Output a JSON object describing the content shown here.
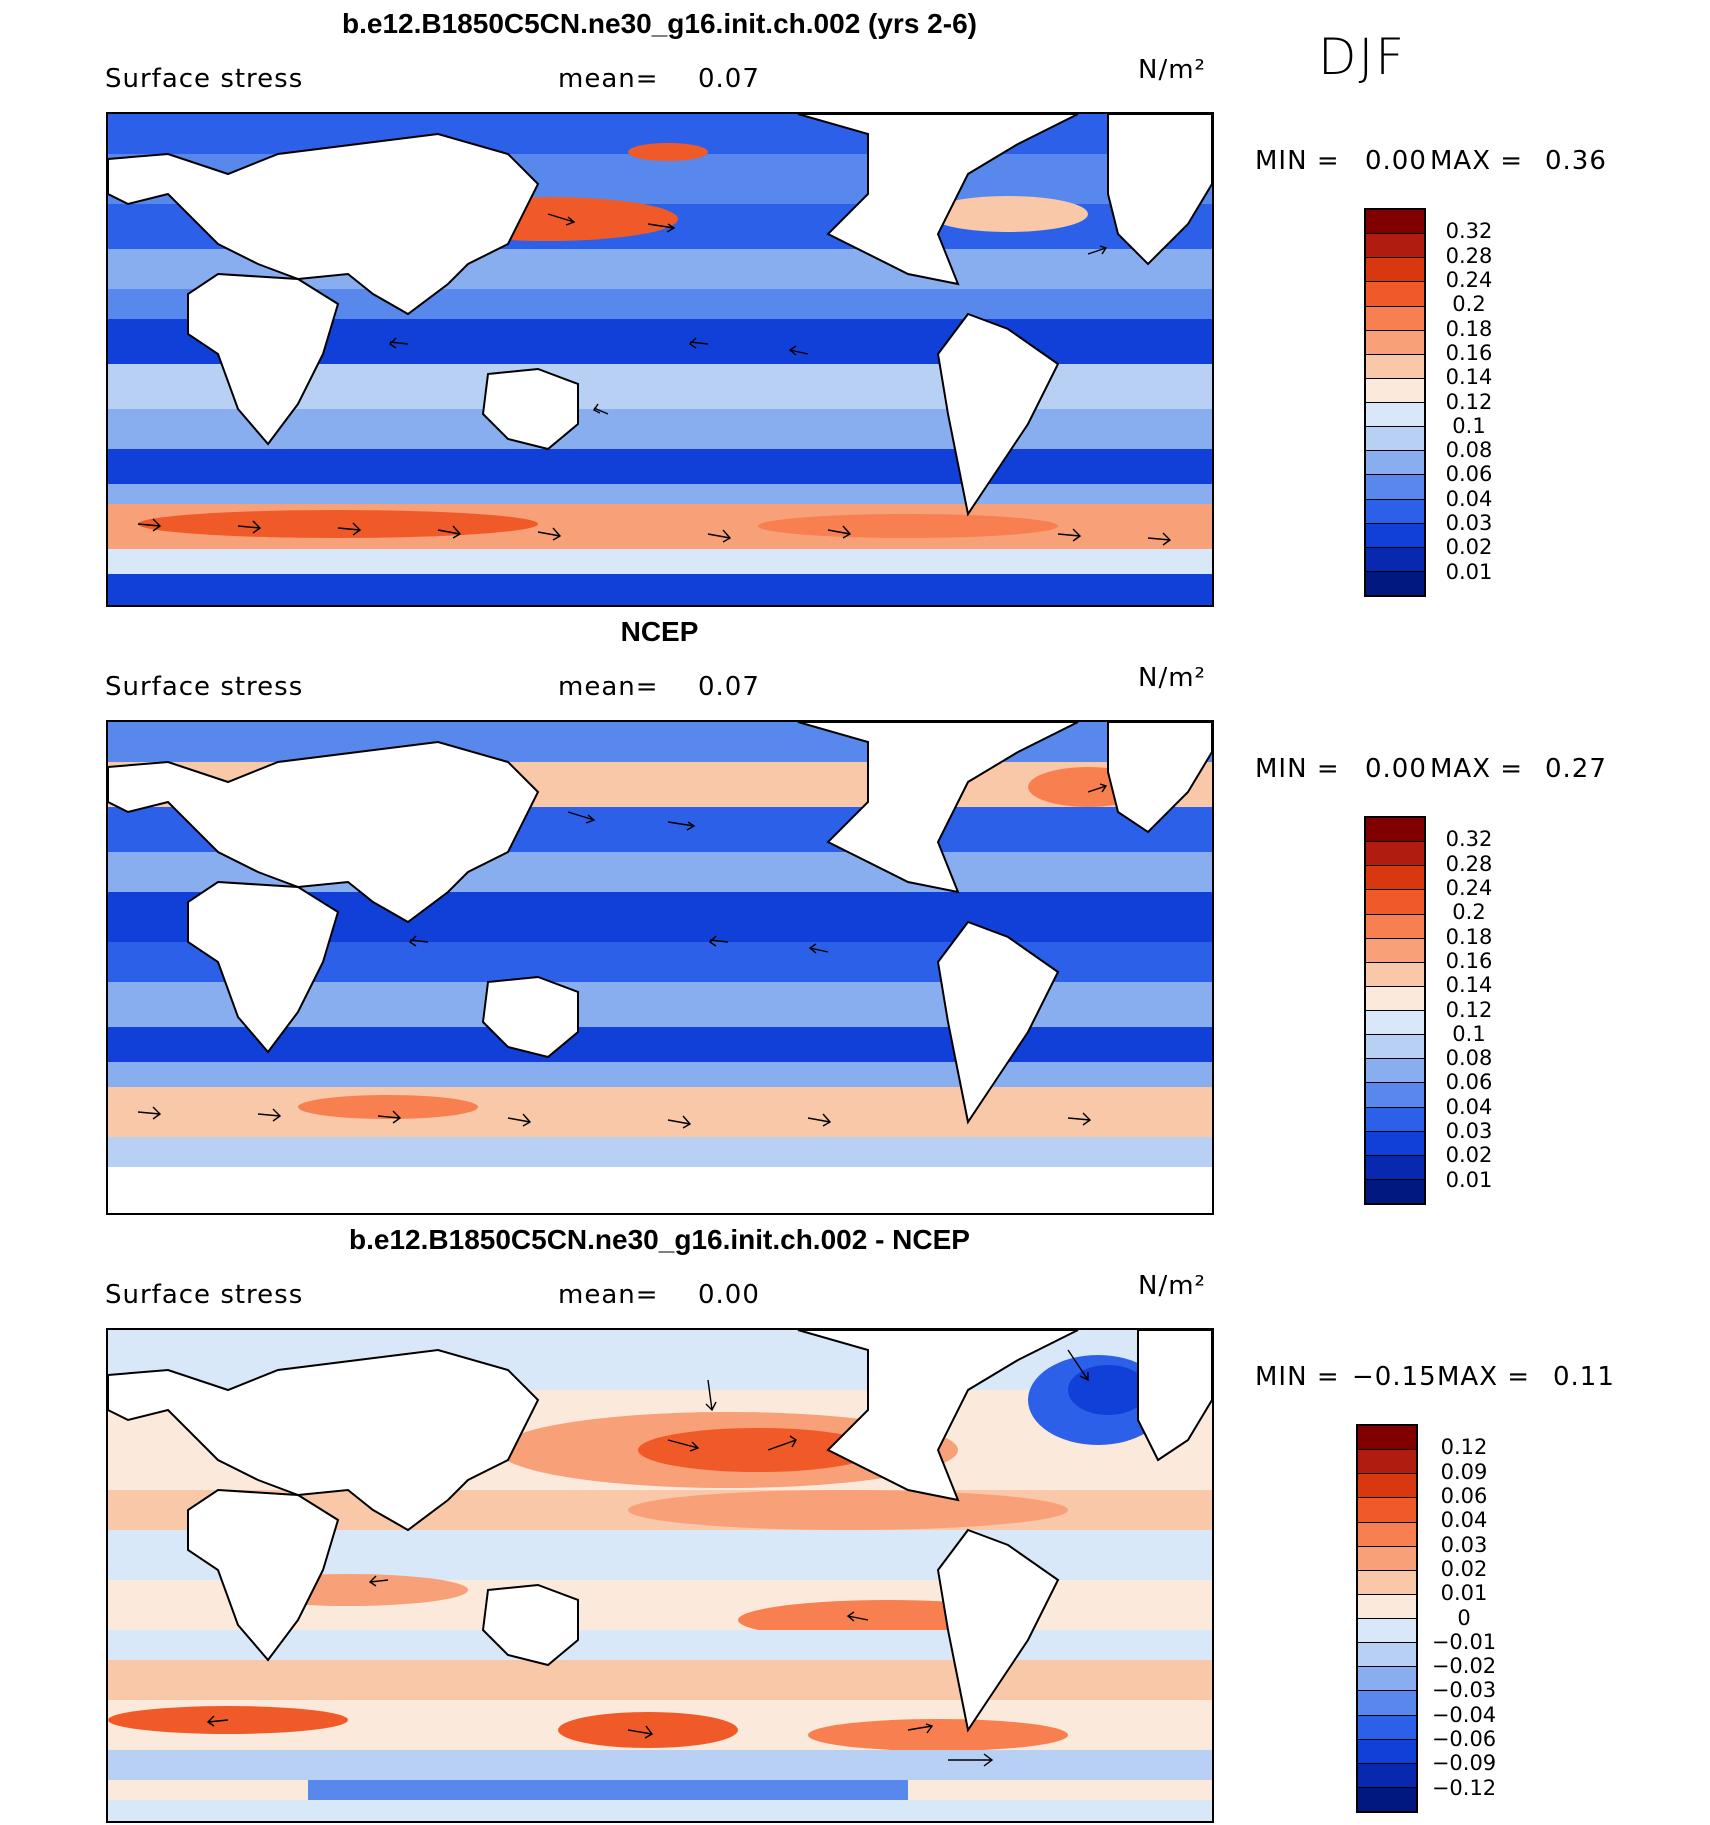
{
  "season": "DJF",
  "panels": [
    {
      "title": "b.e12.B1850C5CN.ne30_g16.init.ch.002 (yrs 2-6)",
      "variable": "Surface stress",
      "mean_label": "mean=",
      "mean_value": "0.07",
      "units": "N/m²",
      "min_label": "MIN =",
      "min_value": "0.00",
      "max_label": "MAX =",
      "max_value": "0.36",
      "colorbar_labels": [
        "0.32",
        "0.28",
        "0.24",
        "0.2",
        "0.18",
        "0.16",
        "0.14",
        "0.12",
        "0.1",
        "0.08",
        "0.06",
        "0.04",
        "0.03",
        "0.02",
        "0.01"
      ],
      "colorbar_colors": [
        "#800000",
        "#b01c10",
        "#d83810",
        "#f05a28",
        "#f88050",
        "#f8a078",
        "#f8c8a8",
        "#fbeadb",
        "#d8e8f8",
        "#b8d0f4",
        "#88aef0",
        "#5888ec",
        "#2c60e8",
        "#1040d8",
        "#0828b0",
        "#001880"
      ]
    },
    {
      "title": "NCEP",
      "variable": "Surface stress",
      "mean_label": "mean=",
      "mean_value": "0.07",
      "units": "N/m²",
      "min_label": "MIN =",
      "min_value": "0.00",
      "max_label": "MAX =",
      "max_value": "0.27",
      "colorbar_labels": [
        "0.32",
        "0.28",
        "0.24",
        "0.2",
        "0.18",
        "0.16",
        "0.14",
        "0.12",
        "0.1",
        "0.08",
        "0.06",
        "0.04",
        "0.03",
        "0.02",
        "0.01"
      ],
      "colorbar_colors": [
        "#800000",
        "#b01c10",
        "#d83810",
        "#f05a28",
        "#f88050",
        "#f8a078",
        "#f8c8a8",
        "#fbeadb",
        "#d8e8f8",
        "#b8d0f4",
        "#88aef0",
        "#5888ec",
        "#2c60e8",
        "#1040d8",
        "#0828b0",
        "#001880"
      ]
    },
    {
      "title": "b.e12.B1850C5CN.ne30_g16.init.ch.002 - NCEP",
      "variable": "Surface stress",
      "mean_label": "mean=",
      "mean_value": "0.00",
      "units": "N/m²",
      "min_label": "MIN =",
      "min_value": "−0.15",
      "max_label": "MAX =",
      "max_value": "0.11",
      "colorbar_labels": [
        "0.12",
        "0.09",
        "0.06",
        "0.04",
        "0.03",
        "0.02",
        "0.01",
        "0",
        "−0.01",
        "−0.02",
        "−0.03",
        "−0.04",
        "−0.06",
        "−0.09",
        "−0.12"
      ],
      "colorbar_colors": [
        "#800000",
        "#b01c10",
        "#d83810",
        "#f05a28",
        "#f88050",
        "#f8a078",
        "#f8c8a8",
        "#fbeadb",
        "#d8e8f8",
        "#b8d0f4",
        "#88aef0",
        "#5888ec",
        "#2c60e8",
        "#1040d8",
        "#0828b0",
        "#001880"
      ]
    }
  ]
}
